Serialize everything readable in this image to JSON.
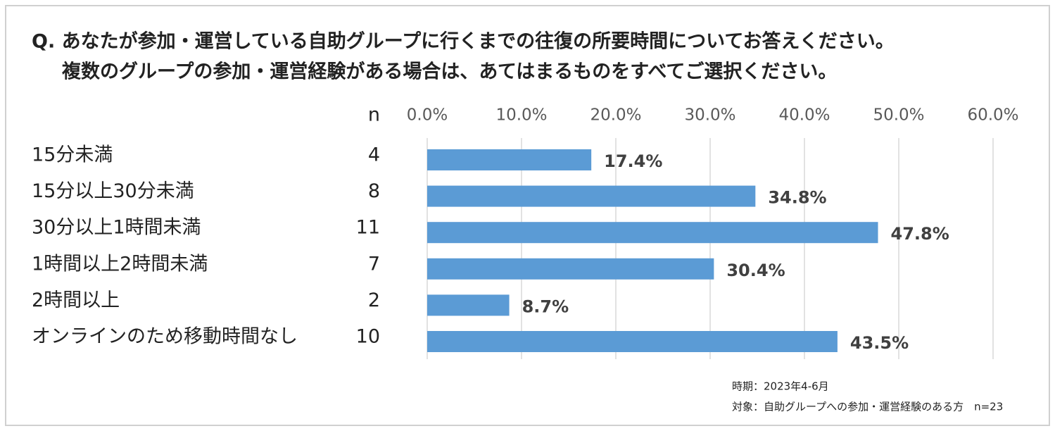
{
  "chart_data": {
    "type": "bar",
    "orientation": "horizontal",
    "title": [
      "Q. あなたが参加・運営している自助グループに行くまでの往復の所要時間についてお答えください。",
      "複数のグループの参加・運営経験がある場合は、あてはまるものをすべてご選択ください。"
    ],
    "categories": [
      "15分未満",
      "15分以上30分未満",
      "30分以上1時間未満",
      "1時間以上2時間未満",
      "2時間以上",
      "オンラインのため移動時間なし"
    ],
    "values": [
      17.4,
      34.8,
      47.8,
      30.4,
      8.7,
      43.5
    ],
    "value_labels": [
      "17.4%",
      "34.8%",
      "47.8%",
      "30.4%",
      "8.7%",
      "43.5%"
    ],
    "n_label": "n",
    "n_counts": [
      4,
      8,
      11,
      7,
      2,
      10
    ],
    "color": "#5b9bd5",
    "xlim": [
      0,
      60
    ],
    "xticks": [
      {
        "value": 0,
        "label": "0.0%"
      },
      {
        "value": 10,
        "label": "10.0%"
      },
      {
        "value": 20,
        "label": "20.0%"
      },
      {
        "value": 30,
        "label": "30.0%"
      },
      {
        "value": 40,
        "label": "40.0%"
      },
      {
        "value": 50,
        "label": "50.0%"
      },
      {
        "value": 60,
        "label": "60.0%"
      }
    ],
    "grid": true,
    "notes": [
      "時期：2023年4-6月",
      "対象：自助グループへの参加・運営経験のある方　n=23"
    ]
  }
}
